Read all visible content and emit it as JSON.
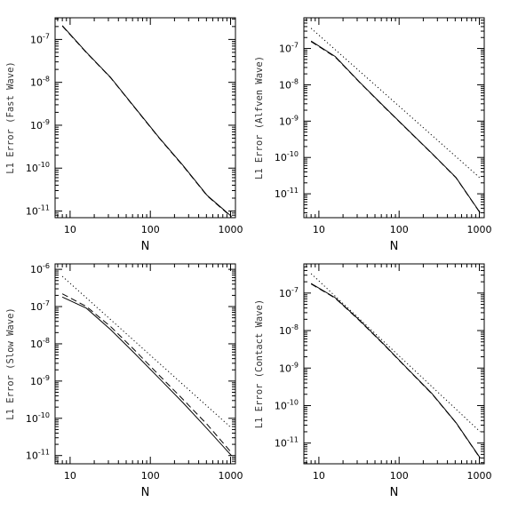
{
  "chart_data": [
    {
      "type": "line",
      "xlabel": "N",
      "ylabel": "L1 Error (Fast Wave)",
      "xscale": "log",
      "yscale": "log",
      "xlim": [
        6.5,
        1150
      ],
      "ylim": [
        7e-12,
        3.2e-07
      ],
      "x_ticks": [
        {
          "value": 10,
          "label": "10"
        },
        {
          "value": 100,
          "label": "100"
        },
        {
          "value": 1000,
          "label": "1000"
        }
      ],
      "y_ticks": [
        {
          "value": 1e-07,
          "mant": "10",
          "exp": "-7"
        },
        {
          "value": 1e-08,
          "mant": "10",
          "exp": "-8"
        },
        {
          "value": 1e-09,
          "mant": "10",
          "exp": "-9"
        },
        {
          "value": 1e-10,
          "mant": "10",
          "exp": "-10"
        },
        {
          "value": 1e-11,
          "mant": "10",
          "exp": "-11"
        }
      ],
      "series": [
        {
          "style": "solid",
          "x": [
            8,
            16,
            32,
            64,
            128,
            256,
            512,
            1024
          ],
          "y": [
            2.1e-07,
            5e-08,
            1.3e-08,
            2.6e-09,
            5.2e-10,
            1.15e-10,
            2.3e-11,
            7.5e-12
          ]
        },
        {
          "style": "dashed",
          "x": [
            8,
            16,
            32,
            64,
            128,
            256,
            512,
            1024
          ],
          "y": [
            2.05e-07,
            4.9e-08,
            1.28e-08,
            2.55e-09,
            5.1e-10,
            1.12e-10,
            2.25e-11,
            7.3e-12
          ]
        }
      ]
    },
    {
      "type": "line",
      "xlabel": "N",
      "ylabel": "L1 Error (Alfven Wave)",
      "xscale": "log",
      "yscale": "log",
      "xlim": [
        6.5,
        1150
      ],
      "ylim": [
        2.2e-12,
        7e-07
      ],
      "x_ticks": [
        {
          "value": 10,
          "label": "10"
        },
        {
          "value": 100,
          "label": "100"
        },
        {
          "value": 1000,
          "label": "1000"
        }
      ],
      "y_ticks": [
        {
          "value": 1e-07,
          "mant": "10",
          "exp": "-7"
        },
        {
          "value": 1e-08,
          "mant": "10",
          "exp": "-8"
        },
        {
          "value": 1e-09,
          "mant": "10",
          "exp": "-9"
        },
        {
          "value": 1e-10,
          "mant": "10",
          "exp": "-10"
        },
        {
          "value": 1e-11,
          "mant": "10",
          "exp": "-11"
        }
      ],
      "series": [
        {
          "style": "solid",
          "x": [
            8,
            16,
            32,
            64,
            128,
            256,
            512,
            1024
          ],
          "y": [
            1.6e-07,
            6e-08,
            1.2e-08,
            2.6e-09,
            5.8e-10,
            1.3e-10,
            2.8e-11,
            3e-12
          ]
        },
        {
          "style": "dashed",
          "x": [
            8,
            16,
            32,
            64,
            128,
            256,
            512,
            1024
          ],
          "y": [
            1.55e-07,
            5.8e-08,
            1.18e-08,
            2.55e-09,
            5.7e-10,
            1.28e-10,
            2.75e-11,
            2.95e-12
          ]
        },
        {
          "style": "dotted",
          "x": [
            8,
            1024
          ],
          "y": [
            3.6e-07,
            2.7e-11
          ]
        }
      ]
    },
    {
      "type": "line",
      "xlabel": "N",
      "ylabel": "L1 Error (Slow Wave)",
      "xscale": "log",
      "yscale": "log",
      "xlim": [
        6.5,
        1150
      ],
      "ylim": [
        6e-12,
        1.4e-06
      ],
      "x_ticks": [
        {
          "value": 10,
          "label": "10"
        },
        {
          "value": 100,
          "label": "100"
        },
        {
          "value": 1000,
          "label": "1000"
        }
      ],
      "y_ticks": [
        {
          "value": 1e-06,
          "mant": "10",
          "exp": "-6"
        },
        {
          "value": 1e-07,
          "mant": "10",
          "exp": "-7"
        },
        {
          "value": 1e-08,
          "mant": "10",
          "exp": "-8"
        },
        {
          "value": 1e-09,
          "mant": "10",
          "exp": "-9"
        },
        {
          "value": 1e-10,
          "mant": "10",
          "exp": "-10"
        },
        {
          "value": 1e-11,
          "mant": "10",
          "exp": "-11"
        }
      ],
      "series": [
        {
          "style": "solid",
          "x": [
            8,
            16,
            32,
            64,
            128,
            256,
            512,
            1024
          ],
          "y": [
            1.8e-07,
            9e-08,
            2.4e-08,
            5.5e-09,
            1.2e-09,
            2.6e-10,
            5.2e-11,
            1e-11
          ]
        },
        {
          "style": "dashed",
          "x": [
            8,
            16,
            32,
            64,
            128,
            256,
            512,
            1024
          ],
          "y": [
            2.2e-07,
            1e-07,
            2.9e-08,
            6.7e-09,
            1.45e-09,
            3.2e-10,
            6.8e-11,
            1.2e-11
          ]
        },
        {
          "style": "dotted",
          "x": [
            8,
            1024
          ],
          "y": [
            6.5e-07,
            5.5e-11
          ]
        }
      ]
    },
    {
      "type": "line",
      "xlabel": "N",
      "ylabel": "L1 Error (Contact Wave)",
      "xscale": "log",
      "yscale": "log",
      "xlim": [
        6.5,
        1150
      ],
      "ylim": [
        2.8e-12,
        6e-07
      ],
      "x_ticks": [
        {
          "value": 10,
          "label": "10"
        },
        {
          "value": 100,
          "label": "100"
        },
        {
          "value": 1000,
          "label": "1000"
        }
      ],
      "y_ticks": [
        {
          "value": 1e-07,
          "mant": "10",
          "exp": "-7"
        },
        {
          "value": 1e-08,
          "mant": "10",
          "exp": "-8"
        },
        {
          "value": 1e-09,
          "mant": "10",
          "exp": "-9"
        },
        {
          "value": 1e-10,
          "mant": "10",
          "exp": "-10"
        },
        {
          "value": 1e-11,
          "mant": "10",
          "exp": "-11"
        }
      ],
      "series": [
        {
          "style": "solid",
          "x": [
            8,
            16,
            32,
            64,
            128,
            256,
            512,
            1024
          ],
          "y": [
            1.8e-07,
            7.5e-08,
            1.9e-08,
            4.4e-09,
            9.5e-10,
            2.1e-10,
            3.5e-11,
            4e-12
          ]
        },
        {
          "style": "dashed",
          "x": [
            8,
            16,
            32,
            64,
            128,
            256,
            512,
            1024
          ],
          "y": [
            1.75e-07,
            7.3e-08,
            1.85e-08,
            4.3e-09,
            9.3e-10,
            2.05e-10,
            3.45e-11,
            3.9e-12
          ]
        },
        {
          "style": "dotted",
          "x": [
            8,
            1024
          ],
          "y": [
            3.3e-07,
            2e-11
          ]
        }
      ]
    }
  ]
}
